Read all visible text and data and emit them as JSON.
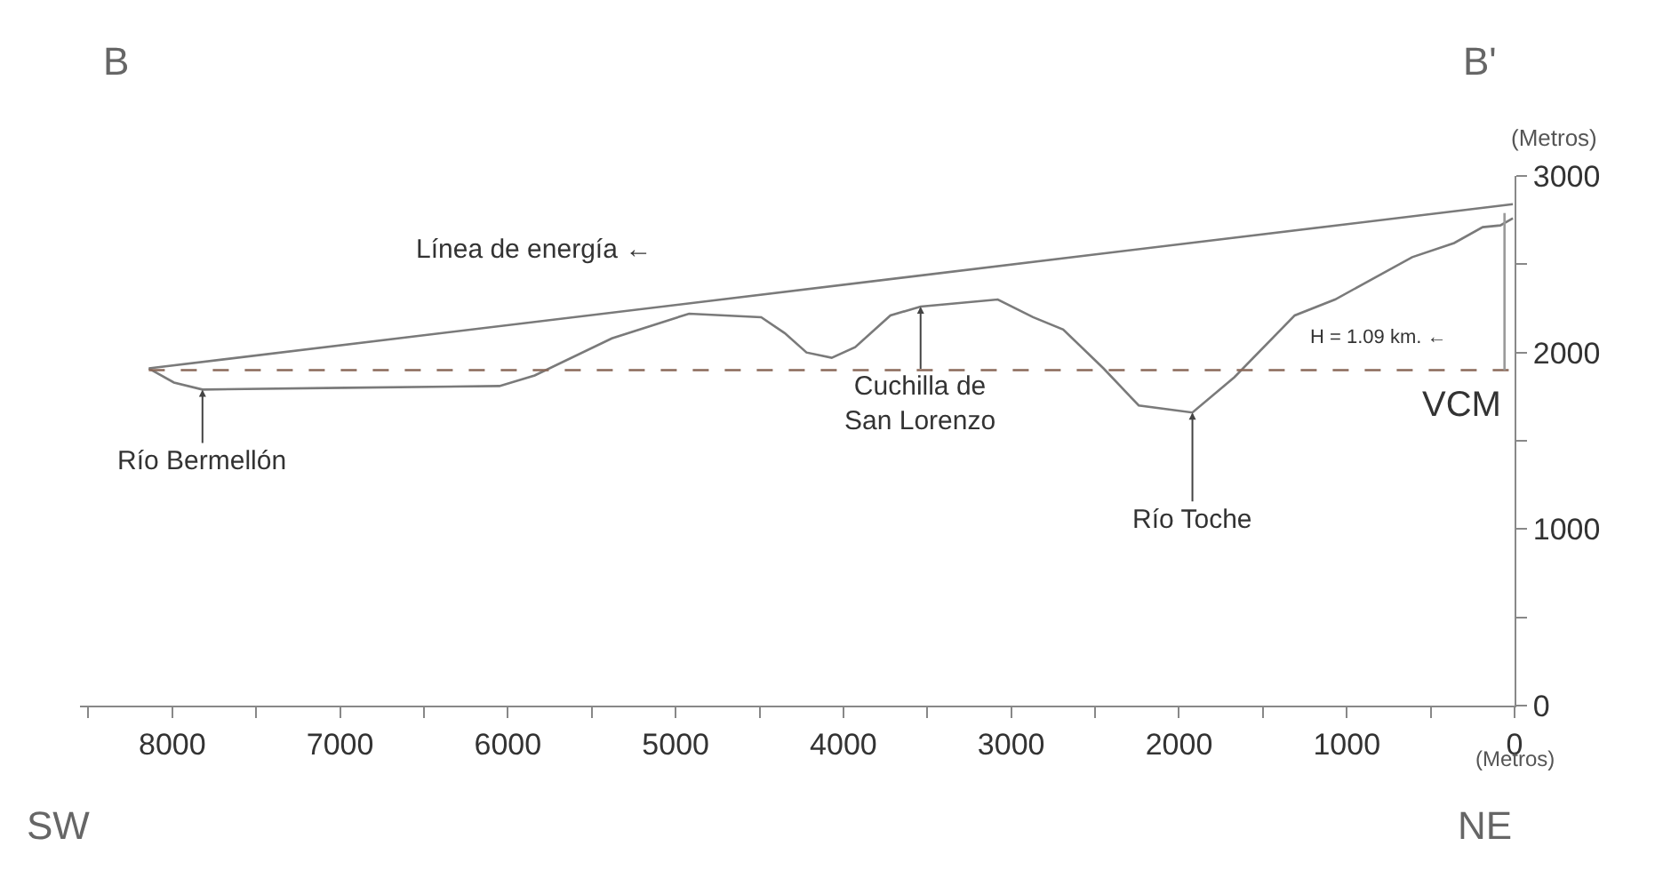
{
  "chart_data": {
    "type": "line",
    "xlabel": "(Metros)",
    "ylabel": "(Metros)",
    "x": [
      8140,
      7990,
      7820,
      6970,
      6050,
      5840,
      5380,
      4920,
      4490,
      4350,
      4220,
      4070,
      3930,
      3720,
      3540,
      3080,
      2870,
      2690,
      2450,
      2240,
      1920,
      1670,
      1310,
      1070,
      610,
      360,
      190,
      85,
      10
    ],
    "series": [
      {
        "color": "#7a7a7a",
        "values": [
          1910,
          1830,
          1790,
          1800,
          1810,
          1870,
          2080,
          2220,
          2200,
          2110,
          2000,
          1970,
          2030,
          2210,
          2260,
          2300,
          2200,
          2130,
          1910,
          1700,
          1660,
          1860,
          2210,
          2300,
          2540,
          2620,
          2710,
          2720,
          2760
        ]
      },
      {
        "color": "#7a7a7a",
        "x": [
          8140,
          10
        ],
        "values": [
          1910,
          2840
        ]
      },
      {
        "color": "#8b6a5a",
        "x": [
          8140,
          10
        ],
        "values": [
          1900,
          1900
        ],
        "line_style": "dashed"
      },
      {
        "color": "#9a9a9a",
        "x": [
          60,
          60
        ],
        "values": [
          1900,
          2790
        ]
      }
    ],
    "xlim": [
      8550,
      0
    ],
    "ylim": [
      0,
      3000
    ],
    "xticks": [
      {
        "value": 8500,
        "label": null
      },
      8000,
      {
        "value": 7500,
        "label": null
      },
      7000,
      {
        "value": 6500,
        "label": null
      },
      6000,
      {
        "value": 5500,
        "label": null
      },
      5000,
      {
        "value": 4500,
        "label": null
      },
      4000,
      {
        "value": 3500,
        "label": null
      },
      3000,
      {
        "value": 2500,
        "label": null
      },
      2000,
      {
        "value": 1500,
        "label": null
      },
      1000,
      {
        "value": 500,
        "label": null
      },
      0
    ],
    "yticks": [
      0,
      {
        "value": 500,
        "label": null
      },
      1000,
      {
        "value": 1500,
        "label": null
      },
      2000,
      {
        "value": 2500,
        "label": null
      },
      3000
    ],
    "marker": "none",
    "line_style": "solid",
    "annotations": [
      "B",
      "B'",
      "SW",
      "NE",
      "Línea de energía ←",
      "H = 1.09 km. ←",
      "VCM",
      {
        "text": "Río Bermellón",
        "x": 7820,
        "y": 1790
      },
      {
        "text": "Cuchilla de\nSan Lorenzo",
        "x": 3540,
        "y": 2260
      },
      {
        "text": "Río Toche",
        "x": 1920,
        "y": 1660
      }
    ]
  }
}
